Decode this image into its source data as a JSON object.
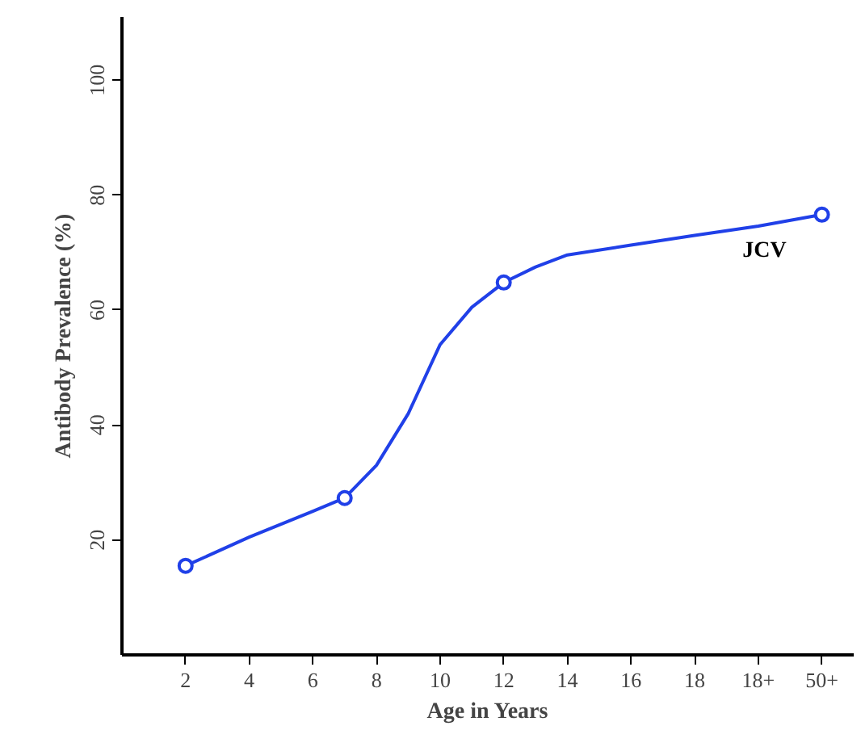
{
  "chart_data": {
    "type": "line",
    "xlabel": "Age in Years",
    "ylabel": "Antibody Prevalence (%)",
    "xlim": [
      0,
      23
    ],
    "ylim": [
      0,
      111
    ],
    "xticks": [
      2,
      4,
      6,
      8,
      10,
      12,
      14,
      16,
      18,
      {
        "value": 20,
        "label": "18+"
      },
      {
        "value": 22,
        "label": "50+"
      }
    ],
    "yticks": [
      20,
      40,
      60,
      80,
      100
    ],
    "grid": false,
    "series": [
      {
        "name": "JCV",
        "color": "#2040e8",
        "marker": "none",
        "x": [
          2,
          4,
          6,
          7,
          8,
          9,
          10,
          11,
          12,
          13,
          14,
          16,
          18,
          20,
          22
        ],
        "values": [
          15.5,
          20.5,
          25,
          27.3,
          33,
          42,
          54,
          60.5,
          64.8,
          67.5,
          69.6,
          71.3,
          73,
          74.6,
          76.6
        ]
      },
      {
        "type": "scatter",
        "color": "#2040e8",
        "marker": "circle",
        "x": [
          2,
          7,
          12,
          22
        ],
        "values": [
          15.5,
          27.3,
          64.8,
          76.6
        ]
      }
    ]
  }
}
